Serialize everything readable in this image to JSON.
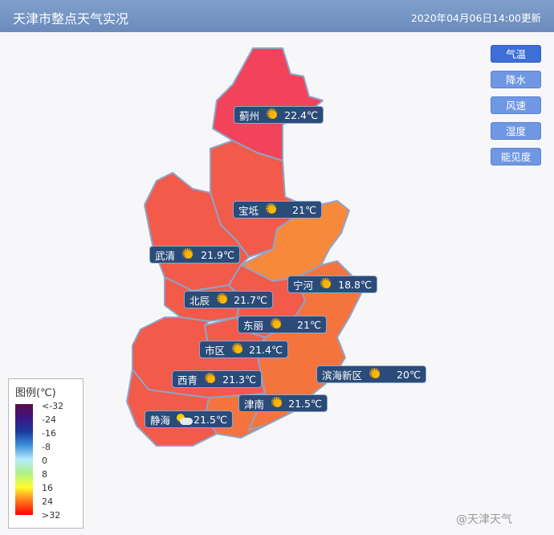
{
  "header": {
    "title": "天津市整点天气实况",
    "updated": "2020年04月06日14:00更新"
  },
  "modes": [
    {
      "label": "气温",
      "active": true
    },
    {
      "label": "降水",
      "active": false
    },
    {
      "label": "风速",
      "active": false
    },
    {
      "label": "湿度",
      "active": false
    },
    {
      "label": "能见度",
      "active": false
    }
  ],
  "stations": [
    {
      "name": "蓟州",
      "icon": "sun-icon",
      "temp": "22.4℃"
    },
    {
      "name": "宝坻",
      "icon": "sun-icon",
      "temp": "21℃"
    },
    {
      "name": "武清",
      "icon": "sun-icon",
      "temp": "21.9℃"
    },
    {
      "name": "宁河",
      "icon": "sun-icon",
      "temp": "18.8℃"
    },
    {
      "name": "北辰",
      "icon": "sun-icon",
      "temp": "21.7℃"
    },
    {
      "name": "东丽",
      "icon": "sun-icon",
      "temp": "21℃"
    },
    {
      "name": "市区",
      "icon": "sun-icon",
      "temp": "21.4℃"
    },
    {
      "name": "滨海新区",
      "icon": "sun-icon",
      "temp": "20℃"
    },
    {
      "name": "西青",
      "icon": "sun-icon",
      "temp": "21.3℃"
    },
    {
      "name": "津南",
      "icon": "sun-icon",
      "temp": "21.5℃"
    },
    {
      "name": "静海",
      "icon": "partly-cloudy-icon",
      "temp": "21.5℃"
    }
  ],
  "legend": {
    "title": "图例(℃)",
    "ticks": [
      "<-32",
      "-24",
      "-16",
      "-8",
      "0",
      "8",
      "16",
      "24",
      ">32"
    ]
  },
  "colors": {
    "temp_22": "#f2435a",
    "temp_21": "#f25a4a",
    "temp_20": "#f5743e",
    "temp_18": "#f7893d",
    "border": "#8fa3c7"
  },
  "watermark": "@天津天气"
}
